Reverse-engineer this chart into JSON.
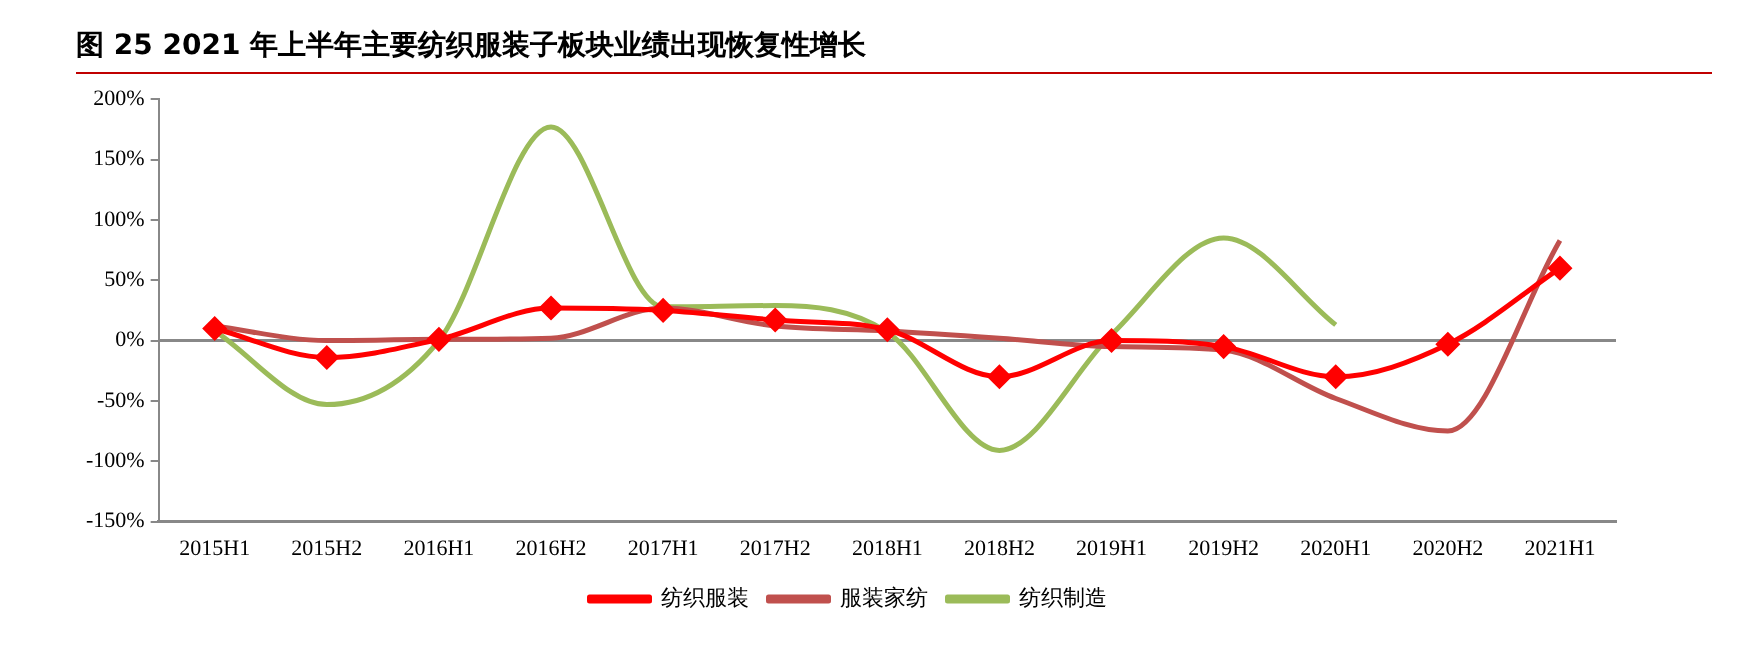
{
  "chart_data": {
    "type": "line",
    "title": "图 25 2021 年上半年主要纺织服装子板块业绩出现恢复性增长",
    "categories": [
      "2015H1",
      "2015H2",
      "2016H1",
      "2016H2",
      "2017H1",
      "2017H2",
      "2018H1",
      "2018H2",
      "2019H1",
      "2019H2",
      "2020H1",
      "2020H2",
      "2021H1"
    ],
    "series": [
      {
        "name": "纺织服装",
        "color": "#ff0000",
        "marker": "diamond",
        "values": [
          10,
          -14,
          1,
          27,
          25,
          17,
          9,
          -30,
          0,
          -5,
          -30,
          -3,
          60
        ]
      },
      {
        "name": "服装家纺",
        "color": "#c0504d",
        "marker": "none",
        "values": [
          12,
          0,
          1,
          2,
          27,
          12,
          8,
          2,
          -5,
          -8,
          -48,
          -75,
          83
        ]
      },
      {
        "name": "纺织制造",
        "color": "#9bbb59",
        "marker": "none",
        "values": [
          8,
          -53,
          0,
          177,
          28,
          29,
          7,
          -91,
          5,
          85,
          13,
          null,
          null
        ]
      }
    ],
    "ylim": [
      -150,
      200
    ],
    "yticks": [
      {
        "value": -150,
        "label": "-150%"
      },
      {
        "value": -100,
        "label": "-100%"
      },
      {
        "value": -50,
        "label": "-50%"
      },
      {
        "value": 0,
        "label": "0%"
      },
      {
        "value": 50,
        "label": "50%"
      },
      {
        "value": 100,
        "label": "100%"
      },
      {
        "value": 150,
        "label": "150%"
      },
      {
        "value": 200,
        "label": "200%"
      }
    ],
    "ref_lines": [
      {
        "axis": "y",
        "value": 0,
        "color": "#888888"
      }
    ],
    "grid": false,
    "legend": "bottom"
  }
}
